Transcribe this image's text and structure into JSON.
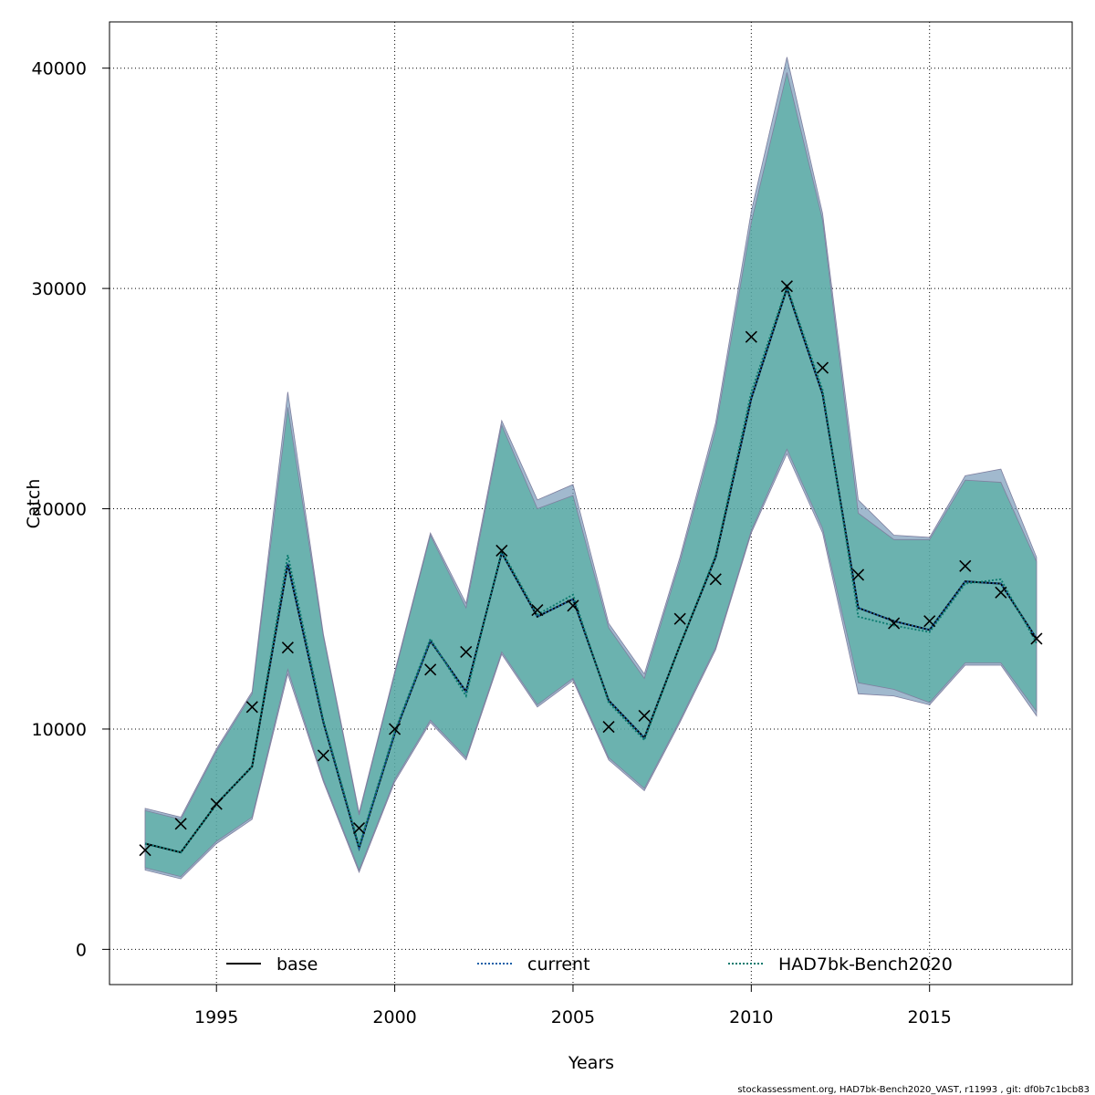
{
  "chart_data": {
    "type": "line",
    "title": "",
    "xlabel": "Years",
    "ylabel": "Catch",
    "xlim": [
      1992,
      2019
    ],
    "ylim": [
      -1600,
      42100
    ],
    "x_ticks": [
      1995,
      2000,
      2005,
      2010,
      2015
    ],
    "y_ticks": [
      0,
      10000,
      20000,
      30000,
      40000
    ],
    "grid": true,
    "legend_position": "bottom",
    "x": [
      1993,
      1994,
      1995,
      1996,
      1997,
      1998,
      1999,
      2000,
      2001,
      2002,
      2003,
      2004,
      2005,
      2006,
      2007,
      2008,
      2009,
      2010,
      2011,
      2012,
      2013,
      2014,
      2015,
      2016,
      2017,
      2018
    ],
    "series": [
      {
        "name": "base",
        "line_style": "solid",
        "color": "#000000",
        "values": [
          4800,
          4400,
          6600,
          8300,
          17500,
          10300,
          4600,
          9800,
          14000,
          11700,
          18000,
          15100,
          15900,
          11300,
          9600,
          13800,
          17800,
          25000,
          30000,
          25200,
          15500,
          14900,
          14500,
          16700,
          16600,
          14100
        ]
      },
      {
        "name": "current",
        "line_style": "dotted",
        "color": "#1a5fa8",
        "values": [
          4800,
          4400,
          6600,
          8300,
          17500,
          10300,
          4600,
          9800,
          14000,
          11700,
          18000,
          15100,
          15900,
          11300,
          9600,
          13800,
          17800,
          25000,
          30000,
          25200,
          15500,
          14900,
          14500,
          16700,
          16600,
          14100
        ],
        "lower": [
          3600,
          3200,
          4800,
          5900,
          12500,
          7600,
          3500,
          7600,
          10300,
          8600,
          13400,
          11000,
          12200,
          8600,
          7200,
          10300,
          13600,
          18900,
          22500,
          18900,
          11600,
          11500,
          11100,
          12900,
          12900,
          10600
        ],
        "upper": [
          6400,
          6000,
          9100,
          11700,
          25300,
          14300,
          6200,
          12600,
          18900,
          15700,
          24000,
          20400,
          21100,
          14800,
          12500,
          17800,
          23900,
          33500,
          40500,
          33400,
          20400,
          18800,
          18700,
          21500,
          21800,
          17800
        ],
        "band_color": "#6f93b4"
      },
      {
        "name": "HAD7bk-Bench2020",
        "line_style": "dotted",
        "color": "#0a7a6e",
        "values": [
          4800,
          4400,
          6600,
          8300,
          17900,
          10400,
          4700,
          9900,
          14100,
          11500,
          18100,
          15200,
          16100,
          11200,
          9500,
          13800,
          17900,
          25300,
          30100,
          25400,
          15100,
          14700,
          14400,
          16600,
          16800,
          13900
        ],
        "lower": [
          3700,
          3300,
          4900,
          6000,
          12700,
          7700,
          3600,
          7700,
          10400,
          8700,
          13500,
          11100,
          12300,
          8700,
          7300,
          10400,
          13700,
          19000,
          22700,
          19100,
          12100,
          11800,
          11200,
          13000,
          13000,
          10800
        ],
        "upper": [
          6300,
          5900,
          9000,
          11600,
          24600,
          14200,
          6100,
          12500,
          18800,
          15500,
          23800,
          20000,
          20600,
          14600,
          12300,
          17600,
          23600,
          33000,
          39800,
          33100,
          19800,
          18600,
          18600,
          21300,
          21200,
          17600
        ],
        "band_color": "#4fae9e"
      }
    ],
    "observations": {
      "marker": "x",
      "values": [
        4500,
        5700,
        6600,
        11000,
        13700,
        8800,
        5500,
        10000,
        12700,
        13500,
        18100,
        15400,
        15600,
        10100,
        10600,
        15000,
        16800,
        27800,
        30100,
        26400,
        17000,
        14800,
        14900,
        17400,
        16200,
        14100
      ]
    }
  },
  "footer": {
    "text": "stockassessment.org, HAD7bk-Bench2020_VAST, r11993 , git: df0b7c1bcb83"
  }
}
